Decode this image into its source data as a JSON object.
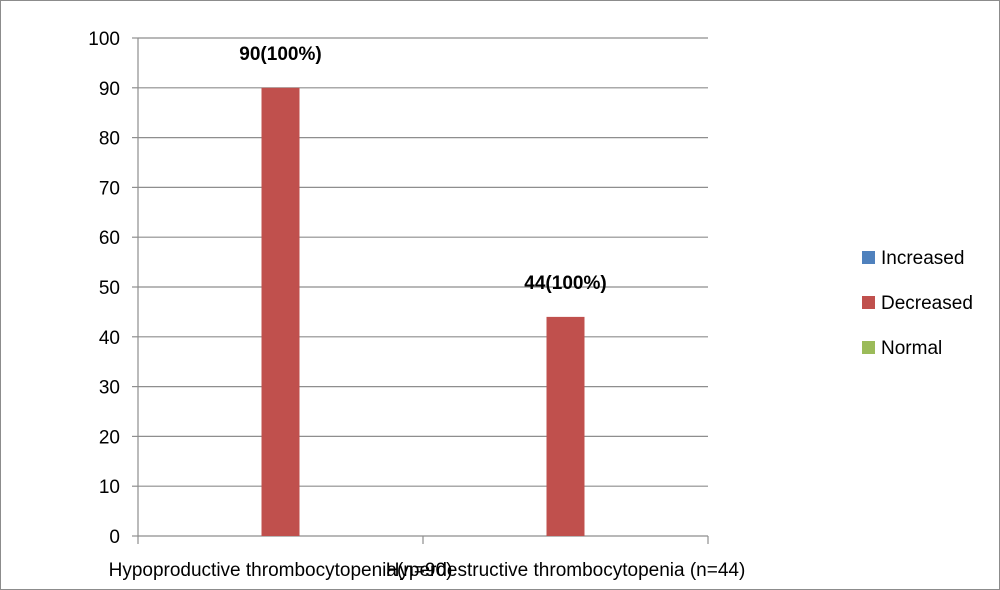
{
  "chart_data": {
    "type": "bar",
    "categories": [
      "Hypoproductive thrombocytopenia(n=90)",
      "Hyperdestructive thrombocytopenia (n=44)"
    ],
    "series": [
      {
        "name": "Increased",
        "color": "#4f81bd",
        "values": [
          0,
          0
        ]
      },
      {
        "name": "Decreased",
        "color": "#c0504d",
        "values": [
          90,
          44
        ]
      },
      {
        "name": "Normal",
        "color": "#9bbb59",
        "values": [
          0,
          0
        ]
      }
    ],
    "data_labels": [
      "90(100%)",
      "44(100%)"
    ],
    "ylim": [
      0,
      100
    ],
    "yticks": [
      0,
      10,
      20,
      30,
      40,
      50,
      60,
      70,
      80,
      90,
      100
    ],
    "grid": true,
    "legend_position": "right",
    "title": "",
    "xlabel": "",
    "ylabel": ""
  }
}
